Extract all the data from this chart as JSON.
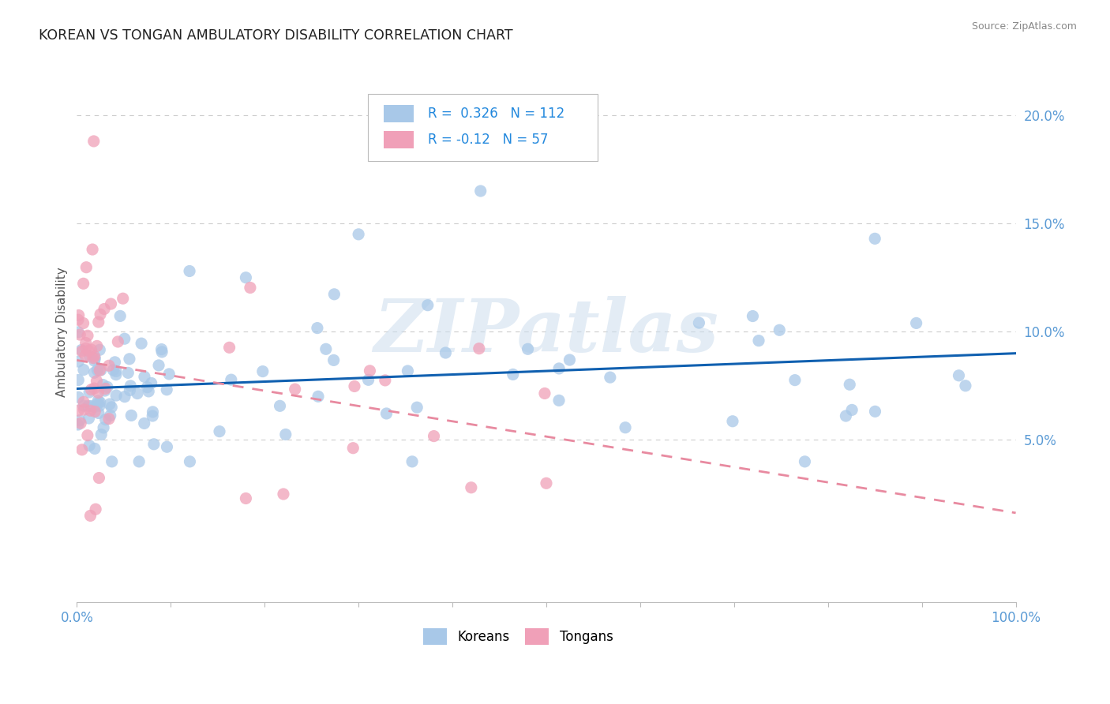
{
  "title": "KOREAN VS TONGAN AMBULATORY DISABILITY CORRELATION CHART",
  "source": "Source: ZipAtlas.com",
  "ylabel": "Ambulatory Disability",
  "xlim": [
    0.0,
    1.0
  ],
  "ylim": [
    -0.025,
    0.225
  ],
  "xticks": [
    0.0,
    0.1,
    0.2,
    0.3,
    0.4,
    0.5,
    0.6,
    0.7,
    0.8,
    0.9,
    1.0
  ],
  "xticklabels": [
    "0.0%",
    "",
    "",
    "",
    "",
    "",
    "",
    "",
    "",
    "",
    "100.0%"
  ],
  "yticks": [
    0.05,
    0.1,
    0.15,
    0.2
  ],
  "yticklabels": [
    "5.0%",
    "10.0%",
    "15.0%",
    "20.0%"
  ],
  "korean_color": "#a8c8e8",
  "tongan_color": "#f0a0b8",
  "korean_line_color": "#1060b0",
  "tongan_line_color": "#e88aa0",
  "korean_R": 0.326,
  "korean_N": 112,
  "tongan_R": -0.12,
  "tongan_N": 57,
  "watermark_text": "ZIPatlas",
  "background_color": "#ffffff",
  "grid_color": "#cccccc",
  "legend_R_color": "#2288dd",
  "title_color": "#222222",
  "ylabel_color": "#555555",
  "tick_color": "#5b9bd5",
  "source_color": "#888888"
}
